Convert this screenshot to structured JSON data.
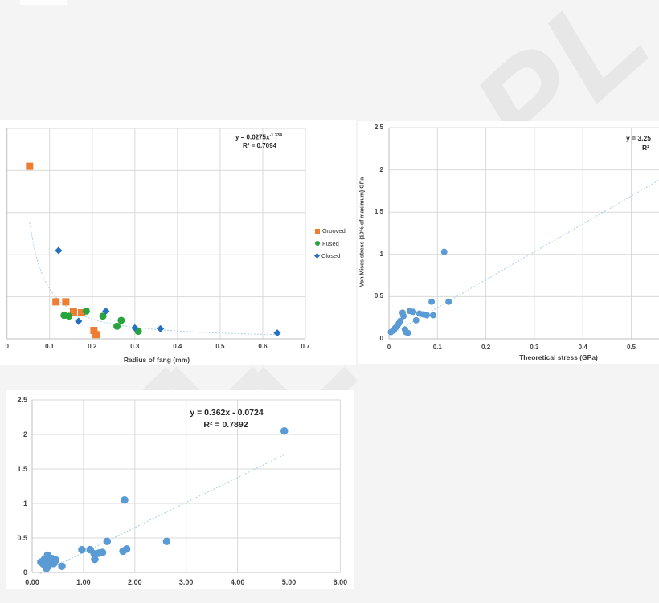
{
  "watermark": {
    "text": "PL",
    "color": "#e7e7e7"
  },
  "colors": {
    "background": "#f4f4f4",
    "panel": "#ffffff",
    "gridline": "#d9d9d9",
    "axis_line": "#bfbfbf",
    "tick_text": "#444444",
    "grooved_orange": "#ED7D31",
    "fused_green": "#27A53C",
    "closed_blue": "#2570C0",
    "dot_blue": "#5B9BD5",
    "trendline_blue": "#A9CCEA"
  },
  "chart_data": [
    {
      "type": "scatter",
      "title": "",
      "xlabel": "Radius of fang (mm)",
      "ylabel": "",
      "xlim": [
        0,
        0.7
      ],
      "ylim": [
        0,
        2.5
      ],
      "x_ticks": {
        "values": [
          0,
          0.1,
          0.2,
          0.3,
          0.4,
          0.5,
          0.6,
          0.7
        ],
        "labels": [
          "0",
          "0.1",
          "0.2",
          "0.3",
          "0.4",
          "0.5",
          "0.6",
          "0.7"
        ]
      },
      "y_ticks": {
        "values": [
          0,
          0.5,
          1,
          1.5,
          2,
          2.5
        ],
        "labels": []
      },
      "equation": {
        "line1": "y = 0.0275x",
        "exponent": "-1.334",
        "line2": "R² = 0.7094"
      },
      "legend": [
        {
          "label": "Grooved",
          "marker": "square",
          "color": "#ED7D31"
        },
        {
          "label": "Fused",
          "marker": "circle",
          "color": "#27A53C"
        },
        {
          "label": "Closed",
          "marker": "diamond",
          "color": "#2570C0"
        }
      ],
      "series": [
        {
          "name": "Grooved",
          "marker": "square",
          "color": "#ED7D31",
          "size": 9,
          "points": [
            [
              0.053,
              2.05
            ],
            [
              0.115,
              0.44
            ],
            [
              0.138,
              0.44
            ],
            [
              0.156,
              0.32
            ],
            [
              0.175,
              0.31
            ],
            [
              0.204,
              0.1
            ],
            [
              0.209,
              0.05
            ]
          ]
        },
        {
          "name": "Fused",
          "marker": "circle",
          "color": "#27A53C",
          "size": 9,
          "points": [
            [
              0.134,
              0.28
            ],
            [
              0.145,
              0.27
            ],
            [
              0.186,
              0.33
            ],
            [
              0.225,
              0.27
            ],
            [
              0.258,
              0.15
            ],
            [
              0.268,
              0.22
            ],
            [
              0.308,
              0.09
            ]
          ]
        },
        {
          "name": "Closed",
          "marker": "diamond",
          "color": "#2570C0",
          "size": 9,
          "points": [
            [
              0.121,
              1.05
            ],
            [
              0.168,
              0.21
            ],
            [
              0.232,
              0.33
            ],
            [
              0.3,
              0.13
            ],
            [
              0.36,
              0.12
            ],
            [
              0.634,
              0.07
            ]
          ]
        }
      ],
      "trendline": {
        "kind": "power",
        "a": 0.0275,
        "b": -1.334,
        "x_start": 0.053,
        "x_end": 0.64
      }
    },
    {
      "type": "scatter",
      "title": "",
      "xlabel": "Theoretical stress (GPa)",
      "ylabel": "Von Mises stress (10% of maximum) GPa",
      "xlim": [
        0,
        0.558
      ],
      "ylim": [
        0,
        2.5
      ],
      "x_ticks": {
        "values": [
          0,
          0.1,
          0.2,
          0.3,
          0.4,
          0.5
        ],
        "labels": [
          "0",
          "0.1",
          "0.2",
          "0.3",
          "0.4",
          "0.5"
        ]
      },
      "y_ticks": {
        "values": [
          0,
          0.5,
          1,
          1.5,
          2,
          2.5
        ],
        "labels": [
          "0",
          "0.5",
          "1",
          "1.5",
          "2",
          "2.5"
        ]
      },
      "equation": {
        "line1": "y = 3.25",
        "exponent": "",
        "line2": "R²"
      },
      "legend": [],
      "series": [
        {
          "name": "Von Mises",
          "marker": "circle",
          "color": "#5B9BD5",
          "size": 8,
          "points": [
            [
              0.004,
              0.08
            ],
            [
              0.01,
              0.1
            ],
            [
              0.013,
              0.13
            ],
            [
              0.017,
              0.15
            ],
            [
              0.02,
              0.18
            ],
            [
              0.023,
              0.21
            ],
            [
              0.028,
              0.31
            ],
            [
              0.03,
              0.27
            ],
            [
              0.033,
              0.11
            ],
            [
              0.035,
              0.08
            ],
            [
              0.039,
              0.07
            ],
            [
              0.043,
              0.33
            ],
            [
              0.05,
              0.32
            ],
            [
              0.056,
              0.22
            ],
            [
              0.063,
              0.3
            ],
            [
              0.071,
              0.29
            ],
            [
              0.078,
              0.28
            ],
            [
              0.088,
              0.44
            ],
            [
              0.091,
              0.28
            ],
            [
              0.114,
              1.03
            ],
            [
              0.123,
              0.44
            ]
          ]
        }
      ],
      "trendline": {
        "kind": "linear",
        "a": 3.3,
        "b": 0.04,
        "x_start": 0.013,
        "x_end": 0.558
      }
    },
    {
      "type": "scatter",
      "title": "",
      "xlabel": "",
      "ylabel": "",
      "xlim": [
        0,
        6
      ],
      "ylim": [
        0,
        2.5
      ],
      "x_ticks": {
        "values": [
          0,
          1,
          2,
          3,
          4,
          5,
          6
        ],
        "labels": [
          "0.00",
          "1.00",
          "2.00",
          "3.00",
          "4.00",
          "5.00",
          "6.00"
        ]
      },
      "y_ticks": {
        "values": [
          0,
          0.5,
          1,
          1.5,
          2,
          2.5
        ],
        "labels": [
          "0",
          "0.5",
          "1",
          "1.5",
          "2",
          "2.5"
        ]
      },
      "equation": {
        "line1": "y = 0.362x - 0.0724",
        "exponent": "",
        "line2": "R² = 0.7892"
      },
      "legend": [],
      "series": [
        {
          "name": "Von Mises",
          "marker": "circle",
          "color": "#5B9BD5",
          "size": 9.5,
          "points": [
            [
              0.17,
              0.15
            ],
            [
              0.22,
              0.12
            ],
            [
              0.24,
              0.19
            ],
            [
              0.28,
              0.06
            ],
            [
              0.3,
              0.25
            ],
            [
              0.31,
              0.09
            ],
            [
              0.35,
              0.15
            ],
            [
              0.39,
              0.2
            ],
            [
              0.42,
              0.13
            ],
            [
              0.46,
              0.18
            ],
            [
              0.58,
              0.09
            ],
            [
              0.97,
              0.33
            ],
            [
              1.13,
              0.33
            ],
            [
              1.21,
              0.27
            ],
            [
              1.22,
              0.19
            ],
            [
              1.3,
              0.28
            ],
            [
              1.37,
              0.29
            ],
            [
              1.46,
              0.45
            ],
            [
              1.77,
              0.31
            ],
            [
              1.84,
              0.34
            ],
            [
              1.8,
              1.05
            ],
            [
              2.62,
              0.45
            ],
            [
              4.91,
              2.05
            ]
          ]
        }
      ],
      "trendline": {
        "kind": "linear",
        "a": 0.362,
        "b": -0.0724,
        "x_start": 0.15,
        "x_end": 4.93
      }
    }
  ]
}
